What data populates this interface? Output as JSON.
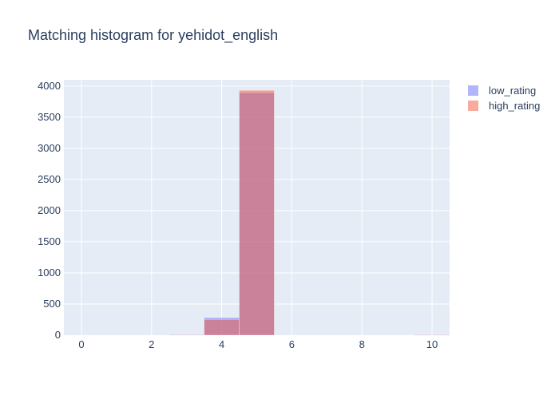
{
  "chart_data": {
    "type": "bar",
    "title": "Matching histogram for yehidot_english",
    "xlabel": "",
    "ylabel": "",
    "xlim": [
      -0.5,
      10.5
    ],
    "ylim": [
      0,
      4100
    ],
    "x_ticks": [
      0,
      2,
      4,
      6,
      8,
      10
    ],
    "y_ticks": [
      0,
      500,
      1000,
      1500,
      2000,
      2500,
      3000,
      3500,
      4000
    ],
    "bin_width": 1,
    "grid": true,
    "legend_position": "top-right",
    "barmode": "overlay",
    "series": [
      {
        "name": "low_rating",
        "color": "#636efa",
        "opacity": 0.5,
        "bins": [
          {
            "x": 3,
            "value": 10
          },
          {
            "x": 4,
            "value": 280
          },
          {
            "x": 5,
            "value": 3890
          },
          {
            "x": 10,
            "value": 8
          }
        ]
      },
      {
        "name": "high_rating",
        "color": "#ef553b",
        "opacity": 0.5,
        "bins": [
          {
            "x": 3,
            "value": 5
          },
          {
            "x": 4,
            "value": 250
          },
          {
            "x": 5,
            "value": 3930
          },
          {
            "x": 10,
            "value": 4
          }
        ]
      }
    ]
  }
}
